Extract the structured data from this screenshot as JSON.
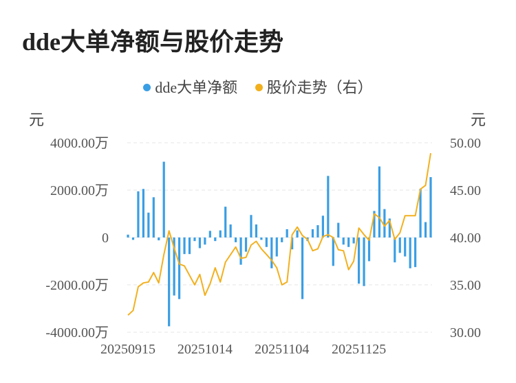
{
  "title": "dde大单净额与股价走势",
  "legend": {
    "bar_label": "dde大单净额",
    "line_label": "股价走势（右）",
    "bar_color": "#3a9ee4",
    "line_color": "#f2b01e"
  },
  "left_unit": "元",
  "right_unit": "元",
  "chart_data": {
    "type": "bar",
    "x_ticks": [
      "20250915",
      "20251014",
      "20251104",
      "20251125"
    ],
    "y_left": {
      "min": -4000,
      "max": 4000,
      "ticks": [
        4000,
        2000,
        0,
        -2000,
        -4000
      ],
      "tick_labels": [
        "4000.00万",
        "2000.00万",
        "0",
        "-2000.00万",
        "-4000.00万"
      ]
    },
    "y_right": {
      "min": 30,
      "max": 50,
      "ticks": [
        50,
        45,
        40,
        35,
        30
      ],
      "tick_labels": [
        "50.00",
        "45.00",
        "40.00",
        "35.00",
        "30.00"
      ]
    },
    "series": [
      {
        "name": "dde大单净额",
        "type": "bar",
        "axis": "left",
        "values": [
          120,
          -100,
          1950,
          2050,
          1050,
          1700,
          -120,
          3200,
          -3750,
          -2450,
          -2600,
          -700,
          -700,
          -150,
          -450,
          -300,
          280,
          -150,
          300,
          1300,
          550,
          -200,
          -1150,
          -600,
          950,
          550,
          -100,
          -400,
          -1300,
          -800,
          -200,
          350,
          -500,
          300,
          -2600,
          -150,
          350,
          520,
          920,
          2600,
          -1200,
          620,
          -300,
          -400,
          -250,
          -1950,
          -2050,
          -1000,
          1120,
          3000,
          1200,
          800,
          -1050,
          -650,
          -800,
          -1300,
          -1250,
          2050,
          650,
          2550
        ]
      },
      {
        "name": "股价走势（右）",
        "type": "line",
        "axis": "right",
        "values": [
          31.8,
          32.3,
          34.8,
          35.2,
          35.3,
          36.3,
          35.2,
          38.2,
          40.7,
          38.9,
          37.2,
          37.0,
          36.0,
          35.0,
          36.1,
          33.9,
          35.1,
          36.8,
          35.3,
          37.4,
          38.2,
          39.0,
          37.8,
          37.9,
          39.2,
          39.6,
          38.8,
          38.2,
          37.6,
          36.8,
          35.0,
          35.3,
          40.3,
          41.1,
          40.2,
          39.8,
          38.6,
          38.8,
          40.1,
          40.3,
          40.0,
          38.7,
          38.6,
          36.6,
          37.5,
          41.0,
          40.3,
          39.7,
          42.5,
          42.1,
          41.2,
          41.8,
          39.8,
          40.5,
          42.3,
          42.3,
          42.3,
          45.1,
          45.5,
          48.9
        ]
      }
    ],
    "grid": "horizontal-dashed",
    "legend_position": "top-center"
  }
}
